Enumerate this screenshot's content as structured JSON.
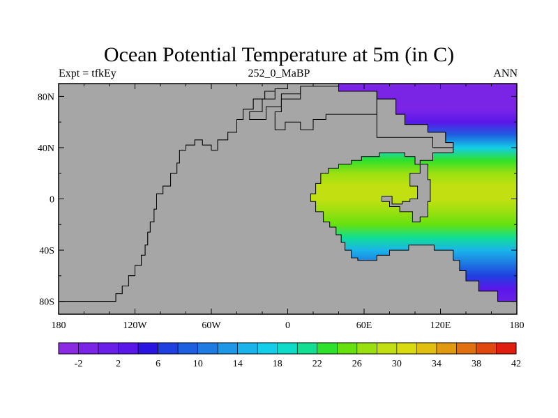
{
  "title": "Ocean Potential Temperature at 5m (in C)",
  "subtitle_left": "Expt = tfkEy",
  "subtitle_center": "252_0_MaBP",
  "subtitle_right": "ANN",
  "colors": {
    "land": "#a6a6a6",
    "colorbar": [
      "#8a2be2",
      "#7a25e6",
      "#6a1fe8",
      "#5a17ea",
      "#2a14e0",
      "#1f40df",
      "#1e5fe0",
      "#1e7be2",
      "#1e97e6",
      "#1ab4ea",
      "#14cde8",
      "#0fdcc8",
      "#12df92",
      "#2fe12a",
      "#66e10f",
      "#9ae010",
      "#c2e011",
      "#d9db10",
      "#e0bf10",
      "#e09a10",
      "#e07010",
      "#e04810",
      "#e01e10"
    ]
  },
  "chart_data": {
    "type": "heatmap",
    "variable": "Ocean Potential Temperature at 5m",
    "units": "C",
    "x_ticks": [
      "180",
      "120W",
      "60W",
      "0",
      "60E",
      "120E",
      "180"
    ],
    "y_ticks": [
      "80N",
      "40N",
      "0",
      "40S",
      "80S"
    ],
    "xlim": [
      -180,
      180
    ],
    "ylim": [
      -90,
      90
    ],
    "colorbar_labels": [
      "-2",
      "2",
      "6",
      "10",
      "14",
      "18",
      "22",
      "26",
      "30",
      "34",
      "38",
      "42"
    ],
    "colorbar_levels": [
      -4,
      -2,
      0,
      2,
      4,
      6,
      8,
      10,
      12,
      14,
      16,
      18,
      20,
      22,
      24,
      26,
      28,
      30,
      32,
      34,
      36,
      38,
      40,
      42
    ],
    "temperature_by_latitude": [
      {
        "lat": 90,
        "value": -1.5
      },
      {
        "lat": 70,
        "value": -1.5
      },
      {
        "lat": 60,
        "value": 2
      },
      {
        "lat": 50,
        "value": 8
      },
      {
        "lat": 40,
        "value": 16
      },
      {
        "lat": 30,
        "value": 22
      },
      {
        "lat": 20,
        "value": 26
      },
      {
        "lat": 10,
        "value": 28
      },
      {
        "lat": 0,
        "value": 29
      },
      {
        "lat": -10,
        "value": 27
      },
      {
        "lat": -20,
        "value": 24
      },
      {
        "lat": -30,
        "value": 20
      },
      {
        "lat": -40,
        "value": 15
      },
      {
        "lat": -50,
        "value": 11
      },
      {
        "lat": -60,
        "value": 7
      },
      {
        "lat": -70,
        "value": 3
      },
      {
        "lat": -80,
        "value": 0
      },
      {
        "lat": -90,
        "value": -1.5
      }
    ],
    "land_polygons": [
      {
        "name": "pangaea-west",
        "points": [
          [
            -180,
            -90
          ],
          [
            -180,
            -80
          ],
          [
            -135,
            -80
          ],
          [
            -135,
            -74
          ],
          [
            -130,
            -74
          ],
          [
            -130,
            -68
          ],
          [
            -125,
            -68
          ],
          [
            -125,
            -60
          ],
          [
            -120,
            -60
          ],
          [
            -120,
            -52
          ],
          [
            -115,
            -52
          ],
          [
            -115,
            -44
          ],
          [
            -112,
            -44
          ],
          [
            -112,
            -36
          ],
          [
            -110,
            -36
          ],
          [
            -110,
            -26
          ],
          [
            -108,
            -26
          ],
          [
            -108,
            -18
          ],
          [
            -105,
            -18
          ],
          [
            -105,
            -8
          ],
          [
            -103,
            -8
          ],
          [
            -103,
            4
          ],
          [
            -98,
            4
          ],
          [
            -98,
            10
          ],
          [
            -92,
            10
          ],
          [
            -92,
            20
          ],
          [
            -87,
            20
          ],
          [
            -87,
            28
          ],
          [
            -85,
            28
          ],
          [
            -85,
            38
          ],
          [
            -80,
            38
          ],
          [
            -80,
            42
          ],
          [
            -73,
            42
          ],
          [
            -73,
            46
          ],
          [
            -67,
            46
          ],
          [
            -67,
            42
          ],
          [
            -60,
            42
          ],
          [
            -60,
            38
          ],
          [
            -55,
            38
          ],
          [
            -55,
            46
          ],
          [
            -47,
            46
          ],
          [
            -47,
            52
          ],
          [
            -40,
            52
          ],
          [
            -40,
            62
          ],
          [
            -35,
            62
          ],
          [
            -35,
            70
          ],
          [
            -27,
            70
          ],
          [
            -27,
            78
          ],
          [
            -18,
            78
          ],
          [
            -18,
            84
          ],
          [
            -8,
            84
          ],
          [
            -8,
            86
          ],
          [
            0,
            86
          ],
          [
            0,
            90
          ],
          [
            -180,
            90
          ]
        ]
      },
      {
        "name": "pangaea-east",
        "points": [
          [
            -180,
            -90
          ],
          [
            180,
            -90
          ],
          [
            180,
            -80
          ],
          [
            165,
            -80
          ],
          [
            165,
            -72
          ],
          [
            150,
            -72
          ],
          [
            150,
            -64
          ],
          [
            140,
            -64
          ],
          [
            140,
            -56
          ],
          [
            135,
            -56
          ],
          [
            135,
            -48
          ],
          [
            130,
            -48
          ],
          [
            130,
            -40
          ],
          [
            115,
            -40
          ],
          [
            115,
            -36
          ],
          [
            95,
            -36
          ],
          [
            95,
            -40
          ],
          [
            80,
            -40
          ],
          [
            80,
            -44
          ],
          [
            70,
            -44
          ],
          [
            70,
            -48
          ],
          [
            55,
            -48
          ],
          [
            55,
            -46
          ],
          [
            50,
            -46
          ],
          [
            50,
            -40
          ],
          [
            45,
            -40
          ],
          [
            45,
            -34
          ],
          [
            42,
            -34
          ],
          [
            42,
            -28
          ],
          [
            38,
            -28
          ],
          [
            38,
            -22
          ],
          [
            33,
            -22
          ],
          [
            33,
            -18
          ],
          [
            28,
            -18
          ],
          [
            28,
            -10
          ],
          [
            22,
            -10
          ],
          [
            22,
            -2
          ],
          [
            18,
            -2
          ],
          [
            18,
            4
          ],
          [
            22,
            4
          ],
          [
            22,
            12
          ],
          [
            26,
            12
          ],
          [
            26,
            20
          ],
          [
            32,
            20
          ],
          [
            32,
            24
          ],
          [
            40,
            24
          ],
          [
            40,
            27
          ],
          [
            50,
            27
          ],
          [
            50,
            30
          ],
          [
            58,
            30
          ],
          [
            58,
            33
          ],
          [
            72,
            33
          ],
          [
            72,
            36
          ],
          [
            92,
            36
          ],
          [
            92,
            33
          ],
          [
            100,
            33
          ],
          [
            100,
            27
          ],
          [
            110,
            27
          ],
          [
            110,
            15
          ],
          [
            112,
            15
          ],
          [
            112,
            -2
          ],
          [
            110,
            -2
          ],
          [
            110,
            -14
          ],
          [
            104,
            -14
          ],
          [
            104,
            -18
          ],
          [
            98,
            -18
          ],
          [
            98,
            -10
          ],
          [
            88,
            -10
          ],
          [
            88,
            -6
          ],
          [
            80,
            -6
          ],
          [
            80,
            -2
          ],
          [
            74,
            -2
          ],
          [
            74,
            2
          ],
          [
            82,
            2
          ],
          [
            82,
            -4
          ],
          [
            90,
            -4
          ],
          [
            90,
            -2
          ],
          [
            96,
            -2
          ],
          [
            96,
            0
          ],
          [
            102,
            0
          ],
          [
            102,
            10
          ],
          [
            96,
            10
          ],
          [
            96,
            20
          ],
          [
            104,
            20
          ],
          [
            104,
            30
          ],
          [
            114,
            30
          ],
          [
            114,
            36
          ],
          [
            130,
            36
          ],
          [
            130,
            44
          ],
          [
            124,
            44
          ],
          [
            124,
            52
          ],
          [
            110,
            52
          ],
          [
            110,
            58
          ],
          [
            92,
            58
          ],
          [
            92,
            66
          ],
          [
            85,
            66
          ],
          [
            85,
            78
          ],
          [
            70,
            78
          ],
          [
            70,
            84
          ],
          [
            40,
            84
          ],
          [
            40,
            90
          ],
          [
            0,
            90
          ],
          [
            0,
            86
          ],
          [
            -8,
            86
          ],
          [
            -8,
            84
          ],
          [
            -18,
            84
          ],
          [
            -18,
            78
          ],
          [
            -27,
            78
          ],
          [
            -27,
            70
          ],
          [
            -35,
            70
          ],
          [
            -35,
            62
          ],
          [
            -40,
            62
          ],
          [
            -40,
            52
          ],
          [
            -47,
            52
          ],
          [
            -47,
            46
          ],
          [
            -55,
            46
          ],
          [
            -55,
            38
          ],
          [
            -60,
            38
          ],
          [
            -60,
            42
          ],
          [
            -67,
            42
          ],
          [
            -67,
            46
          ],
          [
            -73,
            46
          ],
          [
            -73,
            42
          ],
          [
            -80,
            42
          ],
          [
            -80,
            38
          ],
          [
            -85,
            38
          ],
          [
            -85,
            28
          ],
          [
            -87,
            28
          ],
          [
            -87,
            20
          ],
          [
            -92,
            20
          ],
          [
            -92,
            10
          ],
          [
            -98,
            10
          ],
          [
            -98,
            4
          ],
          [
            -103,
            4
          ],
          [
            -103,
            -8
          ],
          [
            -105,
            -8
          ],
          [
            -105,
            -18
          ],
          [
            -108,
            -18
          ],
          [
            -108,
            -26
          ],
          [
            -110,
            -26
          ],
          [
            -110,
            -36
          ],
          [
            -112,
            -36
          ],
          [
            -112,
            -44
          ],
          [
            -115,
            -44
          ],
          [
            -115,
            -52
          ],
          [
            -120,
            -52
          ],
          [
            -120,
            -60
          ],
          [
            -125,
            -60
          ],
          [
            -125,
            -68
          ],
          [
            -130,
            -68
          ],
          [
            -130,
            -74
          ],
          [
            -135,
            -74
          ],
          [
            -135,
            -80
          ],
          [
            -180,
            -80
          ]
        ]
      },
      {
        "name": "north-block",
        "points": [
          [
            -17,
            62
          ],
          [
            -17,
            72
          ],
          [
            -5,
            72
          ],
          [
            -5,
            82
          ],
          [
            10,
            82
          ],
          [
            10,
            86
          ],
          [
            40,
            86
          ],
          [
            40,
            90
          ],
          [
            0,
            90
          ],
          [
            0,
            86
          ],
          [
            -10,
            86
          ],
          [
            -10,
            78
          ],
          [
            -20,
            78
          ],
          [
            -20,
            68
          ],
          [
            -30,
            68
          ],
          [
            -30,
            62
          ]
        ]
      },
      {
        "name": "north-east-block",
        "points": [
          [
            -10,
            62
          ],
          [
            -10,
            54
          ],
          [
            -2,
            54
          ],
          [
            -2,
            60
          ],
          [
            10,
            60
          ],
          [
            10,
            54
          ],
          [
            20,
            54
          ],
          [
            20,
            62
          ],
          [
            30,
            62
          ],
          [
            30,
            66
          ],
          [
            70,
            66
          ],
          [
            70,
            84
          ],
          [
            40,
            84
          ],
          [
            40,
            88
          ],
          [
            10,
            88
          ],
          [
            10,
            78
          ],
          [
            -5,
            78
          ],
          [
            -5,
            68
          ],
          [
            -10,
            68
          ]
        ]
      },
      {
        "name": "asia-block",
        "points": [
          [
            70,
            84
          ],
          [
            70,
            48
          ],
          [
            114,
            48
          ],
          [
            114,
            40
          ],
          [
            130,
            40
          ],
          [
            130,
            44
          ],
          [
            124,
            44
          ],
          [
            124,
            52
          ],
          [
            110,
            52
          ],
          [
            110,
            58
          ],
          [
            92,
            58
          ],
          [
            92,
            66
          ],
          [
            85,
            66
          ],
          [
            85,
            78
          ],
          [
            70,
            78
          ]
        ]
      }
    ]
  }
}
